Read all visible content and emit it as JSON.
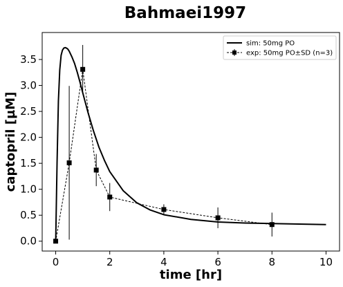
{
  "chart_data": {
    "type": "line",
    "title": "Bahmaei1997",
    "xlabel": "time [hr]",
    "ylabel": "captopril [µM]",
    "xlim": [
      -0.5,
      10.5
    ],
    "ylim": [
      -0.19,
      4.02
    ],
    "xticks": [
      0,
      2,
      4,
      6,
      8,
      10
    ],
    "yticks": [
      0.0,
      0.5,
      1.0,
      1.5,
      2.0,
      2.5,
      3.0,
      3.5
    ],
    "grid": false,
    "legend_position": "top-right",
    "series": [
      {
        "name": "sim: 50mg PO",
        "kind": "line",
        "style": "solid",
        "color": "#000000",
        "x": [
          0,
          0.05,
          0.1,
          0.15,
          0.2,
          0.25,
          0.3,
          0.35,
          0.4,
          0.45,
          0.5,
          0.6,
          0.7,
          0.8,
          0.9,
          1.0,
          1.2,
          1.4,
          1.6,
          1.8,
          2.0,
          2.5,
          3.0,
          3.5,
          4.0,
          5.0,
          6.0,
          7.0,
          8.0,
          9.0,
          10.0
        ],
        "y": [
          0.0,
          1.5,
          2.7,
          3.3,
          3.58,
          3.68,
          3.72,
          3.73,
          3.72,
          3.7,
          3.66,
          3.55,
          3.42,
          3.25,
          3.06,
          2.86,
          2.47,
          2.12,
          1.81,
          1.56,
          1.34,
          0.97,
          0.74,
          0.6,
          0.51,
          0.42,
          0.37,
          0.35,
          0.34,
          0.33,
          0.32
        ]
      },
      {
        "name": "exp: 50mg PO±SD (n=3)",
        "kind": "errorbar",
        "style": "dashed",
        "marker": "square",
        "color": "#000000",
        "x": [
          0,
          0.5,
          1,
          1.5,
          2,
          4,
          6,
          8
        ],
        "y": [
          0.0,
          1.51,
          3.31,
          1.37,
          0.85,
          0.61,
          0.45,
          0.32
        ],
        "yerr": [
          0.0,
          1.48,
          0.47,
          0.31,
          0.27,
          0.1,
          0.2,
          0.23
        ]
      }
    ]
  }
}
